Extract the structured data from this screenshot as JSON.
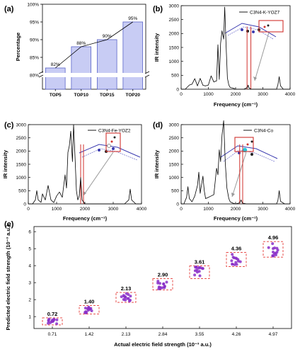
{
  "figure": {
    "panel_labels": [
      "(a)",
      "(b)",
      "(c)",
      "(d)",
      "(e)"
    ]
  },
  "chart_data": [
    {
      "panel": "(a)",
      "type": "bar",
      "categories": [
        "TOP5",
        "TOP10",
        "TOP15",
        "TOP20"
      ],
      "values": [
        82,
        88,
        90,
        95
      ],
      "value_labels": [
        "82%",
        "88%",
        "90%",
        "95%"
      ],
      "ylabel": "Percentage",
      "yticks": [
        "80%",
        "85%",
        "90%",
        "95%",
        "100%"
      ],
      "ylim": [
        80,
        100
      ],
      "axis_break": true,
      "trend_line": true,
      "bar_color": "#c8ccf4",
      "bar_edge": "#5a64c8"
    },
    {
      "panel": "(b)",
      "type": "line",
      "legend": "C3N4-K-YOZ7",
      "xlabel": "Frequency (cm⁻¹)",
      "ylabel": "IR intensity",
      "xlim": [
        0,
        4000
      ],
      "ylim": [
        0,
        3000
      ],
      "xticks": [
        "0",
        "1000",
        "2000",
        "3000",
        "4000"
      ],
      "yticks": [
        "0",
        "500",
        "1000",
        "1500",
        "2000",
        "2500",
        "3000"
      ],
      "x": [
        0,
        150,
        300,
        400,
        500,
        600,
        700,
        800,
        900,
        1000,
        1100,
        1200,
        1300,
        1350,
        1400,
        1450,
        1500,
        1560,
        1600,
        1650,
        1700,
        1750,
        1800,
        1900,
        2000,
        2300,
        2430,
        2460,
        2480,
        2560,
        2700,
        3000,
        3300,
        3500,
        3550,
        3600,
        3650,
        3750,
        4000
      ],
      "y": [
        0,
        0,
        150,
        180,
        380,
        120,
        390,
        140,
        120,
        150,
        480,
        260,
        300,
        1600,
        350,
        1650,
        2100,
        1800,
        2950,
        1600,
        400,
        150,
        60,
        40,
        0,
        0,
        60,
        150,
        60,
        0,
        0,
        0,
        0,
        0,
        150,
        450,
        120,
        0,
        0
      ],
      "markers": [
        2420,
        2560
      ],
      "marker_color": "#d0312d",
      "line_color": "#000000"
    },
    {
      "panel": "(c)",
      "type": "line",
      "legend": "C3N4-Fe-YOZ2",
      "xlabel": "Frequency (cm⁻¹)",
      "ylabel": "IR intensity",
      "xlim": [
        0,
        4000
      ],
      "ylim": [
        0,
        3000
      ],
      "xticks": [
        "0",
        "1000",
        "2000",
        "3000",
        "4000"
      ],
      "yticks": [
        "0",
        "500",
        "1000",
        "1500",
        "2000",
        "2500",
        "3000"
      ],
      "x": [
        0,
        150,
        250,
        300,
        350,
        450,
        500,
        600,
        700,
        800,
        900,
        1000,
        1100,
        1200,
        1300,
        1350,
        1400,
        1450,
        1500,
        1560,
        1600,
        1650,
        1700,
        1750,
        1800,
        1850,
        1900,
        2000,
        2300,
        2600,
        3000,
        3400,
        3550,
        3600,
        3650,
        3800,
        4000
      ],
      "y": [
        0,
        0,
        150,
        500,
        150,
        60,
        380,
        150,
        700,
        150,
        50,
        300,
        450,
        250,
        1100,
        600,
        1950,
        2200,
        2750,
        1600,
        3000,
        1800,
        500,
        150,
        300,
        1000,
        150,
        0,
        0,
        0,
        0,
        0,
        150,
        560,
        150,
        0,
        0
      ],
      "markers": [
        1850,
        1950
      ],
      "marker_color": "#d0312d",
      "line_color": "#000000"
    },
    {
      "panel": "(d)",
      "type": "line",
      "legend": "C3N4-Co",
      "xlabel": "Frequency (cm⁻¹)",
      "ylabel": "IR intensity",
      "xlim": [
        0,
        4000
      ],
      "ylim": [
        0,
        3000
      ],
      "xticks": [
        "0",
        "1000",
        "2000",
        "3000",
        "4000"
      ],
      "yticks": [
        "0",
        "500",
        "1000",
        "1500",
        "2000",
        "2500",
        "3000"
      ],
      "x": [
        0,
        100,
        200,
        250,
        300,
        400,
        500,
        600,
        650,
        700,
        800,
        850,
        900,
        1000,
        1100,
        1200,
        1300,
        1350,
        1400,
        1450,
        1500,
        1560,
        1620,
        1680,
        1750,
        1800,
        1900,
        2000,
        2150,
        2200,
        2250,
        2400,
        3000,
        3500,
        3550,
        3600,
        3650,
        3800,
        4000
      ],
      "y": [
        0,
        0,
        250,
        650,
        200,
        80,
        300,
        700,
        1200,
        400,
        1050,
        500,
        200,
        250,
        300,
        350,
        1350,
        1100,
        2050,
        1600,
        2600,
        3150,
        1550,
        600,
        200,
        80,
        30,
        0,
        40,
        150,
        30,
        0,
        0,
        0,
        120,
        500,
        100,
        0,
        0
      ],
      "markers": [
        2150,
        2260
      ],
      "marker_color": "#d0312d",
      "line_color": "#000000"
    },
    {
      "panel": "(e)",
      "type": "scatter",
      "xlabel": "Actual electric field strength (10⁻³ a.u.)",
      "ylabel": "Predicted electric field strength (10⁻³ a.u.)",
      "categories": [
        "0.71",
        "1.42",
        "2.13",
        "2.84",
        "3.55",
        "4.26",
        "4.97"
      ],
      "values": [
        0.72,
        1.4,
        2.13,
        2.9,
        3.61,
        4.36,
        4.96
      ],
      "value_labels": [
        "0.72",
        "1.40",
        "2.13",
        "2.90",
        "3.61",
        "4.36",
        "4.96"
      ],
      "ylim": [
        0.3,
        6.3
      ],
      "yticks": [
        "1",
        "2",
        "3",
        "4",
        "5",
        "6"
      ],
      "point_color": "#8a2fc8",
      "box_color": "#e53935"
    }
  ]
}
